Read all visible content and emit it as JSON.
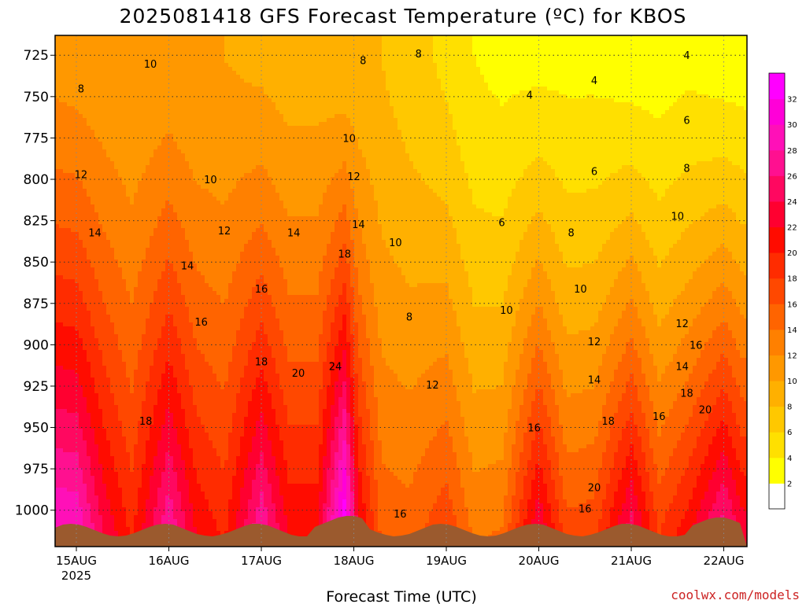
{
  "page": {
    "title": "2025081418 GFS Forecast Temperature (ºC) for KBOS",
    "credit": "coolwx.com/models"
  },
  "chart_data": {
    "type": "heatmap",
    "title": "2025081418 GFS Forecast Temperature (ºC) for KBOS",
    "xlabel": "Forecast Time (UTC)",
    "ylabel": "",
    "y_axis": {
      "ticks": [
        725,
        750,
        775,
        800,
        825,
        850,
        875,
        900,
        925,
        950,
        975,
        1000
      ],
      "range": [
        713,
        1022
      ],
      "inverted": true
    },
    "x_axis": {
      "ticks": [
        {
          "label": "15AUG",
          "sublabel": "2025"
        },
        {
          "label": "16AUG",
          "sublabel": ""
        },
        {
          "label": "17AUG",
          "sublabel": ""
        },
        {
          "label": "18AUG",
          "sublabel": ""
        },
        {
          "label": "19AUG",
          "sublabel": ""
        },
        {
          "label": "20AUG",
          "sublabel": ""
        },
        {
          "label": "21AUG",
          "sublabel": ""
        },
        {
          "label": "22AUG",
          "sublabel": ""
        }
      ]
    },
    "grid": true,
    "colorbar": {
      "placement": "right",
      "levels": [
        0,
        2,
        4,
        6,
        8,
        10,
        12,
        14,
        16,
        18,
        20,
        22,
        24,
        26,
        28,
        30,
        32,
        34
      ],
      "labels": [
        "2",
        "4",
        "6",
        "8",
        "10",
        "12",
        "14",
        "16",
        "18",
        "20",
        "22",
        "24",
        "26",
        "28",
        "30",
        "32"
      ],
      "colors": [
        "#ffffff",
        "#ffff00",
        "#ffe000",
        "#ffc800",
        "#ffb000",
        "#ff9800",
        "#ff8000",
        "#ff6400",
        "#ff4800",
        "#ff2c00",
        "#ff0c00",
        "#ff0030",
        "#ff0860",
        "#ff1090",
        "#ff10b8",
        "#ff00d8",
        "#ff00ff"
      ]
    },
    "temperature_profile": {
      "columns": [
        {
          "day": 15.0,
          "t725": 11.0,
          "t1000": 29.0
        },
        {
          "day": 15.3,
          "t725": 10.5,
          "t1000": 23.0
        },
        {
          "day": 15.6,
          "t725": 10.0,
          "t1000": 19.0
        },
        {
          "day": 16.0,
          "t725": 10.5,
          "t1000": 27.0
        },
        {
          "day": 16.3,
          "t725": 10.0,
          "t1000": 21.0
        },
        {
          "day": 16.6,
          "t725": 10.0,
          "t1000": 19.0
        },
        {
          "day": 17.0,
          "t725": 9.5,
          "t1000": 27.0
        },
        {
          "day": 17.3,
          "t725": 9.0,
          "t1000": 21.0
        },
        {
          "day": 17.6,
          "t725": 9.0,
          "t1000": 21.0
        },
        {
          "day": 17.9,
          "t725": 8.5,
          "t1000": 33.0
        },
        {
          "day": 18.05,
          "t725": 8.5,
          "t1000": 22.0
        },
        {
          "day": 18.3,
          "t725": 8.0,
          "t1000": 15.0
        },
        {
          "day": 18.6,
          "t725": 7.0,
          "t1000": 14.5
        },
        {
          "day": 19.0,
          "t725": 5.5,
          "t1000": 17.0
        },
        {
          "day": 19.3,
          "t725": 4.0,
          "t1000": 13.0
        },
        {
          "day": 19.6,
          "t725": 3.5,
          "t1000": 13.5
        },
        {
          "day": 20.0,
          "t725": 3.5,
          "t1000": 23.0
        },
        {
          "day": 20.3,
          "t725": 3.5,
          "t1000": 16.0
        },
        {
          "day": 20.6,
          "t725": 3.5,
          "t1000": 16.5
        },
        {
          "day": 21.0,
          "t725": 3.0,
          "t1000": 24.0
        },
        {
          "day": 21.3,
          "t725": 3.0,
          "t1000": 17.0
        },
        {
          "day": 21.6,
          "t725": 3.5,
          "t1000": 20.0
        },
        {
          "day": 22.0,
          "t725": 3.0,
          "t1000": 26.0
        },
        {
          "day": 22.2,
          "t725": 3.0,
          "t1000": 22.0
        }
      ]
    },
    "contour_labels": [
      {
        "text": "10",
        "day": 15.8,
        "p": 730
      },
      {
        "text": "8",
        "day": 15.05,
        "p": 745
      },
      {
        "text": "12",
        "day": 15.05,
        "p": 797
      },
      {
        "text": "14",
        "day": 15.2,
        "p": 832
      },
      {
        "text": "10",
        "day": 16.45,
        "p": 800
      },
      {
        "text": "12",
        "day": 16.6,
        "p": 831
      },
      {
        "text": "14",
        "day": 16.2,
        "p": 852
      },
      {
        "text": "16",
        "day": 16.35,
        "p": 886
      },
      {
        "text": "18",
        "day": 15.75,
        "p": 946
      },
      {
        "text": "16",
        "day": 17.0,
        "p": 866
      },
      {
        "text": "18",
        "day": 17.0,
        "p": 910
      },
      {
        "text": "14",
        "day": 17.35,
        "p": 832
      },
      {
        "text": "20",
        "day": 17.4,
        "p": 917
      },
      {
        "text": "24",
        "day": 17.8,
        "p": 913
      },
      {
        "text": "18",
        "day": 17.9,
        "p": 845
      },
      {
        "text": "12",
        "day": 18.0,
        "p": 798
      },
      {
        "text": "14",
        "day": 18.05,
        "p": 827
      },
      {
        "text": "10",
        "day": 17.95,
        "p": 775
      },
      {
        "text": "8",
        "day": 18.1,
        "p": 728
      },
      {
        "text": "8",
        "day": 18.7,
        "p": 724
      },
      {
        "text": "10",
        "day": 18.45,
        "p": 838
      },
      {
        "text": "8",
        "day": 18.6,
        "p": 883
      },
      {
        "text": "12",
        "day": 18.85,
        "p": 924
      },
      {
        "text": "16",
        "day": 18.5,
        "p": 1002
      },
      {
        "text": "6",
        "day": 19.6,
        "p": 826
      },
      {
        "text": "10",
        "day": 19.65,
        "p": 879
      },
      {
        "text": "4",
        "day": 19.9,
        "p": 749
      },
      {
        "text": "16",
        "day": 19.95,
        "p": 950
      },
      {
        "text": "8",
        "day": 20.35,
        "p": 832
      },
      {
        "text": "10",
        "day": 20.45,
        "p": 866
      },
      {
        "text": "12",
        "day": 20.6,
        "p": 898
      },
      {
        "text": "14",
        "day": 20.6,
        "p": 921
      },
      {
        "text": "4",
        "day": 20.6,
        "p": 740
      },
      {
        "text": "6",
        "day": 20.6,
        "p": 795
      },
      {
        "text": "18",
        "day": 20.75,
        "p": 946
      },
      {
        "text": "20",
        "day": 20.6,
        "p": 986
      },
      {
        "text": "16",
        "day": 20.5,
        "p": 999
      },
      {
        "text": "16",
        "day": 21.3,
        "p": 943
      },
      {
        "text": "8",
        "day": 21.6,
        "p": 793
      },
      {
        "text": "10",
        "day": 21.5,
        "p": 822
      },
      {
        "text": "12",
        "day": 21.55,
        "p": 887
      },
      {
        "text": "14",
        "day": 21.55,
        "p": 913
      },
      {
        "text": "16",
        "day": 21.7,
        "p": 900
      },
      {
        "text": "18",
        "day": 21.6,
        "p": 929
      },
      {
        "text": "20",
        "day": 21.8,
        "p": 939
      },
      {
        "text": "4",
        "day": 21.6,
        "p": 725
      },
      {
        "text": "6",
        "day": 21.6,
        "p": 764
      }
    ]
  }
}
